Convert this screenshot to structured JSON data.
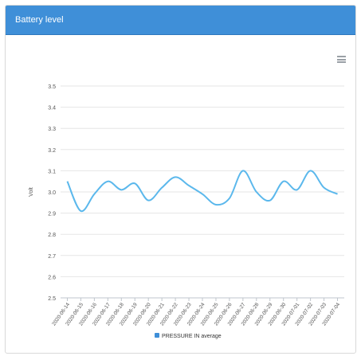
{
  "panel": {
    "title": "Battery level"
  },
  "icons": {
    "menu": "hamburger-menu-icon"
  },
  "colors": {
    "header": "#3f8fd8",
    "series": "#5bb8ec",
    "grid": "#e6e6e6",
    "legend_marker": "#3f8fd8"
  },
  "chart_data": {
    "type": "line",
    "ylabel": "Volt",
    "xlabel": "",
    "title": "",
    "ylim": [
      2.5,
      3.5
    ],
    "yticks": [
      "2.5",
      "2.6",
      "2.7",
      "2.8",
      "2.9",
      "3.0",
      "3.1",
      "3.2",
      "3.3",
      "3.4",
      "3.5"
    ],
    "grid": true,
    "legend": "bottom",
    "categories": [
      "2020-06-14",
      "2020-06-15",
      "2020-06-16",
      "2020-06-17",
      "2020-06-18",
      "2020-06-19",
      "2020-06-20",
      "2020-06-21",
      "2020-06-22",
      "2020-06-23",
      "2020-06-24",
      "2020-06-25",
      "2020-06-26",
      "2020-06-27",
      "2020-06-28",
      "2020-06-29",
      "2020-06-30",
      "2020-07-01",
      "2020-07-02",
      "2020-07-03",
      "2020-07-04"
    ],
    "series": [
      {
        "name": "PRESSURE IN average",
        "values": [
          3.05,
          2.91,
          2.99,
          3.05,
          3.01,
          3.04,
          2.96,
          3.02,
          3.07,
          3.03,
          2.99,
          2.94,
          2.97,
          3.1,
          3.0,
          2.96,
          3.05,
          3.01,
          3.1,
          3.02,
          2.99
        ]
      }
    ]
  }
}
